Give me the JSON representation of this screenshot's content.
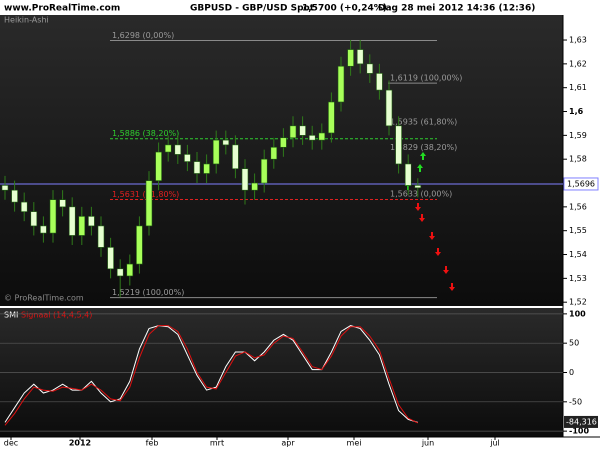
{
  "header": {
    "site": "www.ProRealTime.com",
    "instrument": "GBPUSD - GBP/USD Spot",
    "quote": "1,5700 (+0,24%)",
    "timestamp": "Dag  28 mei 2012 14:36 (12:36)"
  },
  "chart_data": [
    {
      "type": "candlestick",
      "title": "Heikin-Ashi",
      "watermark": "© ProRealTime.com",
      "up_color": "#a8ff5a",
      "down_color": "#e6ffd0",
      "wick_color": "#2f7a1a",
      "open": [
        1.569,
        1.567,
        1.562,
        1.558,
        1.552,
        1.549,
        1.563,
        1.56,
        1.548,
        1.556,
        1.552,
        1.543,
        1.534,
        1.531,
        1.536,
        1.552,
        1.571,
        1.583,
        1.586,
        1.582,
        1.579,
        1.574,
        1.578,
        1.588,
        1.586,
        1.576,
        1.567,
        1.57,
        1.58,
        1.585,
        1.589,
        1.594,
        1.59,
        1.588,
        1.591,
        1.604,
        1.619,
        1.626,
        1.62,
        1.616,
        1.609,
        1.594,
        1.578,
        1.569
      ],
      "close": [
        1.567,
        1.562,
        1.558,
        1.552,
        1.549,
        1.563,
        1.56,
        1.548,
        1.556,
        1.552,
        1.543,
        1.534,
        1.531,
        1.536,
        1.552,
        1.571,
        1.583,
        1.586,
        1.582,
        1.579,
        1.574,
        1.578,
        1.588,
        1.586,
        1.576,
        1.567,
        1.57,
        1.58,
        1.585,
        1.589,
        1.594,
        1.59,
        1.588,
        1.591,
        1.604,
        1.619,
        1.626,
        1.62,
        1.616,
        1.609,
        1.594,
        1.578,
        1.569,
        1.568
      ],
      "high": [
        1.573,
        1.571,
        1.566,
        1.562,
        1.556,
        1.567,
        1.567,
        1.564,
        1.56,
        1.56,
        1.556,
        1.547,
        1.538,
        1.54,
        1.556,
        1.575,
        1.587,
        1.59,
        1.59,
        1.586,
        1.583,
        1.582,
        1.592,
        1.592,
        1.59,
        1.58,
        1.574,
        1.584,
        1.589,
        1.593,
        1.598,
        1.598,
        1.594,
        1.595,
        1.608,
        1.623,
        1.63,
        1.63,
        1.624,
        1.62,
        1.613,
        1.598,
        1.582,
        1.572
      ],
      "low": [
        1.563,
        1.558,
        1.554,
        1.548,
        1.545,
        1.545,
        1.556,
        1.544,
        1.544,
        1.548,
        1.539,
        1.53,
        1.522,
        1.527,
        1.532,
        1.548,
        1.567,
        1.579,
        1.578,
        1.575,
        1.57,
        1.57,
        1.574,
        1.582,
        1.572,
        1.561,
        1.563,
        1.566,
        1.576,
        1.581,
        1.585,
        1.586,
        1.584,
        1.584,
        1.587,
        1.6,
        1.615,
        1.616,
        1.612,
        1.605,
        1.59,
        1.574,
        1.565,
        1.564
      ],
      "ylim": [
        1.5184,
        1.6405
      ],
      "yticks": [
        {
          "value": 1.63,
          "label": "1,63"
        },
        {
          "value": 1.62,
          "label": "1,62"
        },
        {
          "value": 1.61,
          "label": "1,61"
        },
        {
          "value": 1.6,
          "label": "1,6"
        },
        {
          "value": 1.59,
          "label": "1,59"
        },
        {
          "value": 1.58,
          "label": "1,58"
        },
        {
          "value": 1.57,
          "label": "1,57"
        },
        {
          "value": 1.56,
          "label": "1,56"
        },
        {
          "value": 1.55,
          "label": "1,55"
        },
        {
          "value": 1.54,
          "label": "1,54"
        },
        {
          "value": 1.53,
          "label": "1,53"
        },
        {
          "value": 1.52,
          "label": "1,52"
        }
      ],
      "levels": [
        {
          "value": 1.6298,
          "label": "1,6298 (0,00%)",
          "color": "#8a8a8a",
          "line": true,
          "dash": false
        },
        {
          "value": 1.6119,
          "label": "1,6119 (100,00%)",
          "color": "#8a8a8a",
          "line": true,
          "dash": false
        },
        {
          "value": 1.5935,
          "label": "1,5935 (61,80%)",
          "color": "#8a8a8a",
          "line": false,
          "dash": false
        },
        {
          "value": 1.5829,
          "label": "1,5829 (38,20%)",
          "color": "#8a8a8a",
          "line": false,
          "dash": false
        },
        {
          "value": 1.5886,
          "label": "1,5886 (38,20%)",
          "color": "#2ecc2e",
          "line": true,
          "dash": true
        },
        {
          "value": 1.5631,
          "label": "1,5631 (61,80%)",
          "color": "#e02020",
          "line": true,
          "dash": true
        },
        {
          "value": 1.5633,
          "label": "1,5633 (0,00%)",
          "color": "#8a8a8a",
          "line": false,
          "dash": false
        },
        {
          "value": 1.5219,
          "label": "1,5219 (100,00%)",
          "color": "#8a8a8a",
          "line": true,
          "dash": false
        }
      ],
      "last_price": {
        "value": 1.5696,
        "label": "1,5696"
      },
      "last_price_color": "#8080ff"
    },
    {
      "type": "line",
      "title": "SMI",
      "series": [
        {
          "name": "SMI",
          "color": "#ffffff",
          "values": [
            -85,
            -60,
            -35,
            -20,
            -35,
            -30,
            -20,
            -30,
            -30,
            -15,
            -35,
            -50,
            -45,
            -15,
            40,
            75,
            80,
            78,
            65,
            30,
            -5,
            -30,
            -25,
            10,
            35,
            35,
            20,
            35,
            55,
            65,
            55,
            30,
            5,
            5,
            35,
            70,
            80,
            75,
            55,
            30,
            -20,
            -65,
            -80,
            -85
          ]
        },
        {
          "name": "Signaal (14,4,5,4)",
          "color": "#e01010",
          "values": [
            -90,
            -70,
            -45,
            -25,
            -30,
            -32,
            -25,
            -27,
            -30,
            -20,
            -30,
            -45,
            -48,
            -25,
            25,
            65,
            80,
            80,
            70,
            40,
            0,
            -25,
            -28,
            0,
            28,
            35,
            25,
            30,
            50,
            62,
            58,
            35,
            10,
            5,
            28,
            62,
            78,
            78,
            62,
            38,
            -10,
            -55,
            -78,
            -86
          ]
        }
      ],
      "ylim": [
        -110,
        110
      ],
      "yticks": [
        100,
        50,
        0,
        -50,
        -100
      ],
      "grid": true,
      "last_value": {
        "value": -84.316,
        "label": "-84,316"
      },
      "xticks": [
        "dec",
        "2012",
        "feb",
        "mrt",
        "apr",
        "mei",
        "jun",
        "jul"
      ]
    }
  ]
}
